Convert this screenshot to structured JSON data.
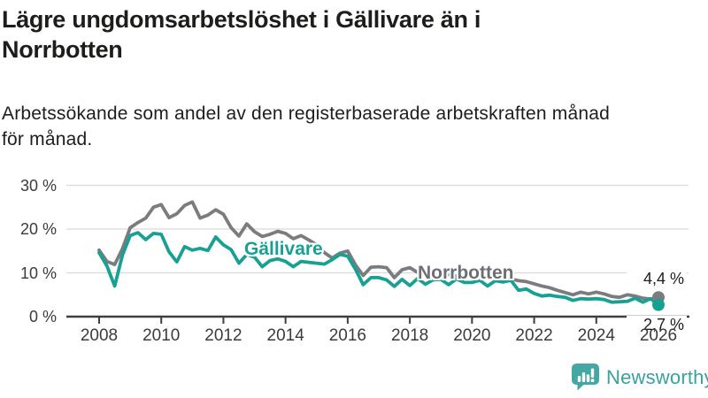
{
  "chart_data": {
    "type": "line",
    "title_lines": [
      "Lägre ungdomsarbetslöshet i Gällivare än i",
      "Norrbotten"
    ],
    "subtitle_lines": [
      "Arbetssökande som andel av den registerbaserade arbetskraften månad",
      "för månad."
    ],
    "xlabel": "",
    "ylabel": "",
    "xlim": [
      2008,
      2026
    ],
    "ylim": [
      0,
      30
    ],
    "grid": true,
    "legend_position": "inline-labels",
    "y_ticks": [
      {
        "label": "30 %",
        "value": 30
      },
      {
        "label": "20 %",
        "value": 20
      },
      {
        "label": "10 %",
        "value": 10
      },
      {
        "label": "0 %",
        "value": 0
      }
    ],
    "x_ticks": [
      {
        "label": "2008",
        "year": 2008
      },
      {
        "label": "2010",
        "year": 2010
      },
      {
        "label": "2012",
        "year": 2012
      },
      {
        "label": "2014",
        "year": 2014
      },
      {
        "label": "2016",
        "year": 2016
      },
      {
        "label": "2018",
        "year": 2018
      },
      {
        "label": "2020",
        "year": 2020
      },
      {
        "label": "2022",
        "year": 2022
      },
      {
        "label": "2024",
        "year": 2024
      },
      {
        "label": "2026",
        "year": 2026
      }
    ],
    "x": [
      2008,
      2008.25,
      2008.5,
      2008.75,
      2009,
      2009.25,
      2009.5,
      2009.75,
      2010,
      2010.25,
      2010.5,
      2010.75,
      2011,
      2011.25,
      2011.5,
      2011.75,
      2012,
      2012.25,
      2012.5,
      2012.75,
      2013,
      2013.25,
      2013.5,
      2013.75,
      2014,
      2014.25,
      2014.5,
      2014.75,
      2015,
      2015.25,
      2015.5,
      2015.75,
      2016,
      2016.25,
      2016.5,
      2016.75,
      2017,
      2017.25,
      2017.5,
      2017.75,
      2018,
      2018.25,
      2018.5,
      2018.75,
      2019,
      2019.25,
      2019.5,
      2019.75,
      2020,
      2020.25,
      2020.5,
      2020.75,
      2021,
      2021.25,
      2021.5,
      2021.75,
      2022,
      2022.25,
      2022.5,
      2022.75,
      2023,
      2023.25,
      2023.5,
      2023.75,
      2024,
      2024.25,
      2024.5,
      2024.75,
      2025,
      2025.25,
      2025.5,
      2025.75,
      2026
    ],
    "series": [
      {
        "name": "Norrbotten",
        "color": "#7b7c80",
        "end_label": "4,4 %",
        "end_value": 4.4,
        "values": [
          15.2,
          12.6,
          11.9,
          15.5,
          20.3,
          21.5,
          22.5,
          25.0,
          25.6,
          22.6,
          23.5,
          25.4,
          26.2,
          22.5,
          23.2,
          24.4,
          23.4,
          20.3,
          18.4,
          21.2,
          19.4,
          18.3,
          18.8,
          19.5,
          19.0,
          17.8,
          18.5,
          17.5,
          16.4,
          14.6,
          13.4,
          14.5,
          15.0,
          11.8,
          9.4,
          11.3,
          11.4,
          11.2,
          8.9,
          10.7,
          11.2,
          10.1,
          9.6,
          10.0,
          10.2,
          9.6,
          9.3,
          9.0,
          9.2,
          9.9,
          9.4,
          9.0,
          8.8,
          8.6,
          8.2,
          8.0,
          7.5,
          7.0,
          6.6,
          6.0,
          5.5,
          5.0,
          5.6,
          5.2,
          5.6,
          5.2,
          4.6,
          4.4,
          5.0,
          4.7,
          4.2,
          4.0,
          4.4
        ]
      },
      {
        "name": "Gällivare",
        "color": "#18a193",
        "end_label": "2,7 %",
        "end_value": 2.7,
        "values": [
          14.6,
          11.6,
          7.0,
          14.0,
          18.5,
          19.2,
          17.6,
          19.0,
          18.8,
          14.8,
          12.5,
          16.0,
          15.2,
          15.6,
          15.1,
          18.2,
          16.4,
          15.3,
          12.2,
          14.2,
          13.6,
          11.4,
          12.8,
          13.2,
          12.6,
          11.4,
          12.6,
          12.4,
          12.2,
          12.0,
          13.0,
          14.2,
          13.8,
          10.8,
          7.3,
          8.9,
          8.9,
          8.4,
          6.9,
          8.5,
          7.1,
          8.7,
          7.4,
          8.4,
          8.5,
          7.3,
          8.6,
          7.8,
          7.8,
          8.3,
          7.0,
          8.2,
          7.9,
          8.3,
          6.0,
          6.3,
          5.3,
          4.7,
          4.9,
          4.6,
          4.4,
          3.7,
          4.1,
          4.0,
          4.1,
          3.9,
          3.3,
          3.4,
          3.5,
          4.2,
          3.3,
          4.1,
          2.7
        ]
      }
    ],
    "style": {
      "grid_color": "#d9d9d9",
      "axis_color": "#3f3f3f",
      "text_color": "#3b3b3b"
    }
  },
  "footer": {
    "brand": "Newsworthy",
    "brand_color": "#37a2a0"
  }
}
